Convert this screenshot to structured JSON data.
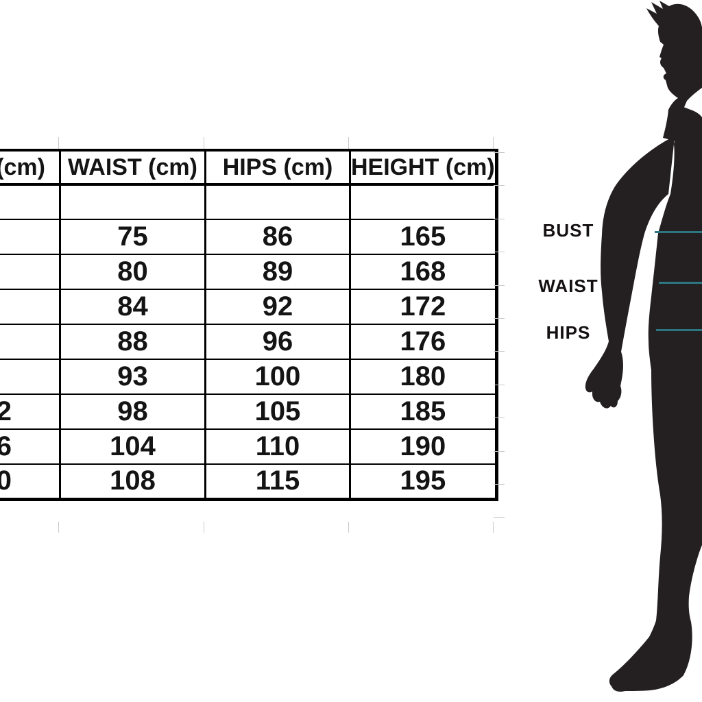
{
  "colors": {
    "teal_line": "#2b7680",
    "silhouette": "#241f20",
    "grid_line": "#c9c9c9",
    "table_border": "#000000",
    "text_color": "#141414"
  },
  "size_table": {
    "headers": {
      "col1": "(cm)",
      "waist": "WAIST (cm)",
      "hips": "HIPS (cm)",
      "height": "HEIGHT (cm)"
    },
    "rows": [
      {
        "col1": "",
        "waist": "",
        "hips": "",
        "height": ""
      },
      {
        "col1": "",
        "waist": "75",
        "hips": "86",
        "height": "165"
      },
      {
        "col1": "",
        "waist": "80",
        "hips": "89",
        "height": "168"
      },
      {
        "col1": "",
        "waist": "84",
        "hips": "92",
        "height": "172"
      },
      {
        "col1": "",
        "waist": "88",
        "hips": "96",
        "height": "176"
      },
      {
        "col1": "",
        "waist": "93",
        "hips": "100",
        "height": "180"
      },
      {
        "col1": "2",
        "waist": "98",
        "hips": "105",
        "height": "185"
      },
      {
        "col1": "6",
        "waist": "104",
        "hips": "110",
        "height": "190"
      },
      {
        "col1": "0",
        "waist": "108",
        "hips": "115",
        "height": "195"
      }
    ]
  },
  "figure": {
    "bust_label": "BUST",
    "waist_label": "WAIST",
    "hips_label": "HIPS"
  }
}
